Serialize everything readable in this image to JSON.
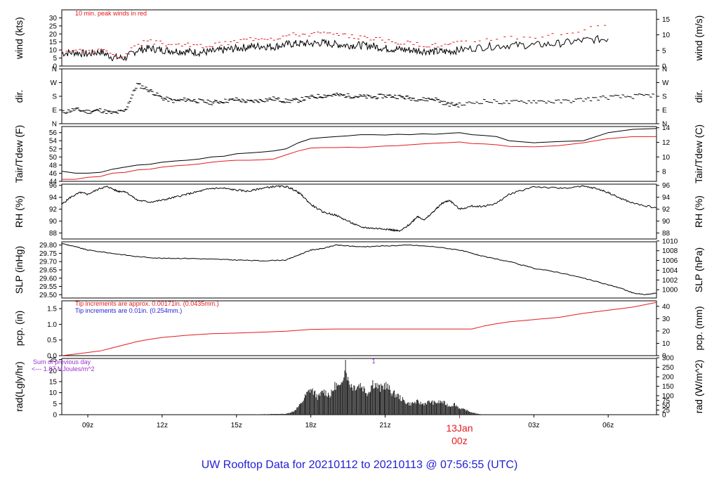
{
  "title": "UW Rooftop Data for 20210112  to  20210113 @ 07:56:55  (UTC)",
  "colors": {
    "frame": "#000000",
    "red": "#e41a1c",
    "blue": "#1f1fd6",
    "purple": "#9933cc",
    "title": "#1f1fd6"
  },
  "xaxis": {
    "start_hour": 7.95,
    "end_hour": 31.95,
    "ticks": [
      {
        "label": "09z",
        "hour": 9
      },
      {
        "label": "12z",
        "hour": 12
      },
      {
        "label": "15z",
        "hour": 15
      },
      {
        "label": "18z",
        "hour": 18
      },
      {
        "label": "21z",
        "hour": 21
      },
      {
        "label": "03z",
        "hour": 27
      },
      {
        "label": "06z",
        "hour": 30
      }
    ],
    "day_label": {
      "hour": 24,
      "line1": "13Jan",
      "line2": "00z"
    }
  },
  "chart_data": [
    {
      "id": "wind",
      "type": "line",
      "ylabel_left": "wind (kts)",
      "ylabel_right": "wind (m/s)",
      "ylim": [
        0,
        35
      ],
      "ticks_left": [
        "0",
        "5",
        "10",
        "15",
        "20",
        "25",
        "30"
      ],
      "ticks_left_values": [
        0,
        5,
        10,
        15,
        20,
        25,
        30
      ],
      "ticks_right": [
        "0",
        "5",
        "10",
        "15"
      ],
      "ticks_right_values": [
        0,
        9.72,
        19.44,
        29.16
      ],
      "annotation": "10 min. peak winds in red",
      "series": [
        {
          "values": [
            8,
            8.5,
            7.5,
            9,
            5.5,
            5,
            10,
            11,
            10,
            9.5,
            9,
            8.5,
            9,
            10,
            11,
            12,
            12.5,
            12,
            13.5,
            14,
            14,
            14.5,
            13.5,
            13,
            13,
            12.5,
            11,
            10.5,
            10,
            9.5,
            9,
            9,
            10,
            12,
            13,
            13,
            14,
            16,
            17
          ]
        },
        {
          "values": [
            9.5,
            10,
            9,
            10.5,
            7,
            6.5,
            14,
            15,
            14,
            13.5,
            13,
            12.5,
            13,
            14,
            15.5,
            17,
            18,
            17.5,
            19,
            20,
            20,
            20.5,
            19,
            18.5,
            18,
            17.5,
            15.5,
            15,
            14,
            13.5,
            13,
            13,
            14.5,
            17,
            18,
            18.5,
            20,
            23,
            25
          ]
        }
      ],
      "x": [
        7.95,
        8.5,
        9,
        9.5,
        10,
        10.5,
        11,
        11.5,
        12,
        12.5,
        13,
        13.5,
        14,
        14.5,
        15,
        15.5,
        16,
        16.5,
        17,
        17.5,
        18,
        18.5,
        19,
        19.5,
        20,
        20.5,
        21,
        21.5,
        22,
        22.5,
        23,
        23.5,
        24,
        25,
        26,
        27,
        28,
        29,
        30
      ]
    },
    {
      "id": "dir",
      "type": "scatter",
      "ylabel_left": "dir.",
      "ylabel_right": "dir.",
      "ylim": [
        0,
        360
      ],
      "ticks_left": [
        "N",
        "E",
        "S",
        "W",
        "N"
      ],
      "ticks_left_values": [
        0,
        90,
        180,
        270,
        360
      ],
      "x": [
        7.95,
        8.5,
        9,
        9.5,
        10,
        10.5,
        11,
        11.5,
        12,
        12.5,
        13,
        13.5,
        14,
        14.5,
        15,
        15.5,
        16,
        16.5,
        17,
        17.5,
        18,
        18.5,
        19,
        19.5,
        20,
        20.5,
        21,
        21.5,
        22,
        22.5,
        23,
        23.5,
        24,
        25,
        26,
        27,
        28,
        29,
        30,
        31,
        31.9
      ],
      "values": [
        75,
        95,
        80,
        90,
        70,
        85,
        260,
        220,
        170,
        150,
        160,
        150,
        140,
        150,
        160,
        145,
        155,
        165,
        150,
        155,
        175,
        185,
        190,
        185,
        180,
        175,
        185,
        180,
        170,
        160,
        165,
        130,
        125,
        150,
        140,
        150,
        145,
        160,
        175,
        180,
        190
      ]
    },
    {
      "id": "temp",
      "type": "line",
      "ylabel_left": "Tair/Tdew (F)",
      "ylabel_right": "Tair/Tdew (C)",
      "ylim": [
        44,
        57.5
      ],
      "ticks_left": [
        "44",
        "46",
        "48",
        "50",
        "52",
        "54",
        "56"
      ],
      "ticks_left_values": [
        44,
        46,
        48,
        50,
        52,
        54,
        56
      ],
      "ticks_right": [
        "8",
        "10",
        "12",
        "14"
      ],
      "ticks_right_values": [
        46.4,
        50,
        53.6,
        57.2
      ],
      "x": [
        7.95,
        8.5,
        9,
        9.5,
        10,
        10.5,
        11,
        11.5,
        12,
        12.5,
        13,
        13.5,
        14,
        14.5,
        15,
        15.5,
        16,
        16.5,
        17,
        17.5,
        18,
        18.5,
        19,
        19.5,
        20,
        20.5,
        21,
        21.5,
        22,
        22.5,
        23,
        23.5,
        24,
        24.5,
        25,
        25.5,
        26,
        27,
        28,
        29,
        30,
        31,
        31.95
      ],
      "series": [
        {
          "name": "Tair",
          "values": [
            46.5,
            46,
            46,
            46.2,
            47,
            47.5,
            48,
            48.2,
            48.7,
            49,
            49.2,
            49.5,
            50,
            50.2,
            50.8,
            51,
            51.2,
            51.5,
            52,
            53.5,
            54.5,
            54.8,
            55,
            55.2,
            55.5,
            55.5,
            55.4,
            55.6,
            55.5,
            55.7,
            55.6,
            55.8,
            56,
            55.5,
            55.3,
            55,
            54,
            53.5,
            53.8,
            54,
            56,
            56.8,
            57
          ]
        },
        {
          "name": "Tdew",
          "values": [
            44.5,
            44.5,
            45,
            45.2,
            46,
            46.2,
            46.8,
            47,
            47.5,
            47.8,
            48,
            48.3,
            48.7,
            49,
            49.2,
            49.2,
            49.3,
            49.5,
            50.5,
            51.5,
            52.2,
            52.3,
            52.3,
            52.4,
            52.3,
            52.5,
            52.7,
            52.8,
            53,
            53.2,
            53.4,
            53.5,
            53.7,
            53.3,
            53.2,
            53,
            52.6,
            52.5,
            52.8,
            53.5,
            54.5,
            55,
            55
          ]
        }
      ]
    },
    {
      "id": "rh",
      "type": "line",
      "ylabel_left": "RH (%)",
      "ylabel_right": "RH (%)",
      "ylim": [
        87,
        96.2
      ],
      "ticks_left": [
        "88",
        "90",
        "92",
        "94",
        "96"
      ],
      "ticks_left_values": [
        88,
        90,
        92,
        94,
        96
      ],
      "ticks_right": [
        "88",
        "90",
        "92",
        "94",
        "96"
      ],
      "ticks_right_values": [
        88,
        90,
        92,
        94,
        96
      ],
      "x": [
        7.95,
        8.3,
        8.7,
        9,
        9.5,
        9.8,
        10.2,
        10.5,
        11,
        11.5,
        12,
        12.5,
        13,
        13.5,
        14,
        14.5,
        15,
        15.5,
        16,
        16.5,
        17,
        17.3,
        17.6,
        18,
        18.5,
        19,
        19.5,
        20,
        20.5,
        21,
        21.3,
        21.6,
        22,
        22.3,
        22.6,
        23,
        23.3,
        23.6,
        24,
        24.5,
        25,
        25.5,
        26,
        27,
        28,
        29,
        29.5,
        30,
        30.5,
        31,
        31.95
      ],
      "values": [
        92.8,
        94,
        94.8,
        94.5,
        95.5,
        95.8,
        95,
        95,
        93.5,
        93.2,
        93.5,
        94,
        94.5,
        95,
        95.5,
        95.5,
        95.2,
        95,
        95.5,
        95.8,
        95.8,
        95.3,
        94.5,
        92.8,
        91.5,
        91,
        90,
        89,
        88.8,
        88.7,
        88.5,
        88.3,
        89.5,
        90.8,
        90.2,
        91.8,
        93,
        93.5,
        92,
        92.5,
        92.5,
        93,
        94.5,
        95.8,
        95.5,
        95.8,
        95.5,
        94.8,
        93.8,
        93,
        92.2
      ]
    },
    {
      "id": "slp",
      "type": "line",
      "ylabel_left": "SLP (inHg)",
      "ylabel_right": "SLP (hPa)",
      "ylim": [
        29.48,
        29.82
      ],
      "ticks_left": [
        "29.50",
        "29.55",
        "29.60",
        "29.65",
        "29.70",
        "29.75",
        "29.80"
      ],
      "ticks_left_values": [
        29.5,
        29.55,
        29.6,
        29.65,
        29.7,
        29.75,
        29.8
      ],
      "ticks_right": [
        "1000",
        "1002",
        "1004",
        "1006",
        "1008",
        "1010"
      ],
      "ticks_right_values": [
        29.53,
        29.589,
        29.648,
        29.707,
        29.766,
        29.825
      ],
      "x": [
        7.95,
        8.5,
        9,
        10,
        11,
        12,
        13,
        14,
        15,
        16,
        17,
        17.5,
        18,
        18.5,
        19,
        19.5,
        20,
        21,
        22,
        23,
        24,
        24.5,
        25,
        26,
        27,
        28,
        29,
        30,
        30.5,
        31,
        31.5,
        31.95
      ],
      "values": [
        29.81,
        29.79,
        29.77,
        29.75,
        29.73,
        29.72,
        29.72,
        29.715,
        29.71,
        29.705,
        29.71,
        29.74,
        29.77,
        29.78,
        29.8,
        29.795,
        29.79,
        29.795,
        29.8,
        29.79,
        29.77,
        29.75,
        29.73,
        29.7,
        29.66,
        29.635,
        29.6,
        29.56,
        29.54,
        29.51,
        29.5,
        29.51
      ]
    },
    {
      "id": "pcp",
      "type": "line",
      "ylabel_left": "pcp. (in)",
      "ylabel_right": "pcp. (mm)",
      "ylim": [
        0,
        1.75
      ],
      "ticks_left": [
        "0.0",
        "0.5",
        "1.0",
        "1.5"
      ],
      "ticks_left_values": [
        0,
        0.5,
        1,
        1.5
      ],
      "ticks_right": [
        "0",
        "10",
        "20",
        "30",
        "40"
      ],
      "ticks_right_values": [
        0,
        0.3937,
        0.7874,
        1.1811,
        1.5748
      ],
      "note_red": "Tip increments are approx. 0.00171in. (0.0435mm.)",
      "note_blue": "Tip increments are 0.01in. (0.254mm.)",
      "x": [
        7.95,
        8.5,
        9,
        9.5,
        10,
        10.5,
        11,
        11.5,
        12,
        13,
        14,
        15,
        16,
        17,
        18,
        19,
        20,
        21,
        22,
        23,
        24,
        24.5,
        25,
        25.5,
        26,
        27,
        28,
        29,
        30,
        31,
        31.95
      ],
      "values": [
        0,
        0.05,
        0.1,
        0.15,
        0.25,
        0.35,
        0.45,
        0.52,
        0.58,
        0.65,
        0.7,
        0.72,
        0.75,
        0.78,
        0.84,
        0.85,
        0.85,
        0.85,
        0.85,
        0.85,
        0.85,
        0.85,
        0.95,
        1.02,
        1.08,
        1.15,
        1.22,
        1.35,
        1.45,
        1.55,
        1.7
      ]
    },
    {
      "id": "rad",
      "type": "area",
      "ylabel_left": "rad(Lgly/hr)",
      "ylabel_right": "rad (W/m^2)",
      "ylim": [
        0,
        25.5
      ],
      "ticks_left": [
        "0",
        "5",
        "10",
        "15",
        "20",
        "25"
      ],
      "ticks_left_values": [
        0,
        5,
        10,
        15,
        20,
        25
      ],
      "ticks_right": [
        "0",
        "25",
        "50",
        "75",
        "100",
        "150",
        "200",
        "250",
        "300"
      ],
      "ticks_right_values": [
        0,
        2.15,
        4.3,
        6.45,
        8.6,
        12.9,
        17.2,
        21.5,
        25.8
      ],
      "note_purple_1": "Sum of previous day",
      "note_purple_2": "<--- 1.87 MJoules/m^2",
      "marker": "1",
      "marker_hour": 19.4,
      "x": [
        15.5,
        16,
        16.5,
        17,
        17.3,
        17.6,
        17.8,
        18,
        18.3,
        18.5,
        18.8,
        19,
        19.2,
        19.4,
        19.5,
        19.7,
        20,
        20.3,
        20.5,
        20.8,
        21,
        21.3,
        21.5,
        21.8,
        22,
        22.3,
        22.5,
        22.8,
        23,
        23.3,
        23.6,
        23.8,
        24,
        24.3,
        24.5,
        24.8,
        25
      ],
      "values": [
        0,
        0.2,
        0.3,
        0.4,
        1.5,
        5,
        9,
        12,
        8,
        11,
        9,
        14,
        12,
        25,
        16,
        13,
        14,
        10,
        15,
        12,
        14,
        10,
        9,
        6,
        5,
        6,
        5,
        6,
        5.5,
        6,
        4,
        5,
        3,
        2,
        1,
        0.3,
        0
      ]
    }
  ]
}
